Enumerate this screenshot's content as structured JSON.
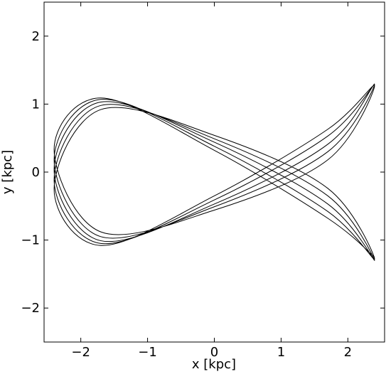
{
  "chart_data": {
    "type": "line",
    "xlabel": "x [kpc]",
    "ylabel": "y [kpc]",
    "xlim": [
      -2.55,
      2.55
    ],
    "ylim": [
      -2.5,
      2.5
    ],
    "xticks": [
      {
        "value": -2,
        "label": "−2"
      },
      {
        "value": -1,
        "label": "−1"
      },
      0,
      1,
      2
    ],
    "yticks": [
      {
        "value": -2,
        "label": "−2"
      },
      {
        "value": -1,
        "label": "−1"
      },
      0,
      1,
      2
    ],
    "grid": false,
    "series": [
      {
        "color": "#000000",
        "x": [
          2.4,
          1.7,
          0,
          -1.7,
          -2.4,
          -1.7,
          0,
          1.7,
          2.4,
          1.7,
          0,
          -1.7,
          -2.4,
          -1.7,
          0,
          1.7,
          2.4,
          1.7,
          0,
          -1.7,
          -2.4,
          -1.7,
          0,
          1.7,
          2.4,
          1.7,
          0,
          -1.7,
          -2.4,
          -1.7,
          0,
          1.7,
          2.4,
          1.7,
          0,
          -1.7,
          -2.4,
          -1.7,
          0,
          1.7,
          2.4
        ],
        "values": [
          1.3,
          0.41,
          -0.47,
          -1.01,
          0.04,
          1.03,
          0.44,
          -0.47,
          -1.3,
          -0.35,
          0.49,
          0.98,
          -0.11,
          -1.05,
          -0.41,
          0.53,
          1.29,
          0.3,
          -0.51,
          -0.95,
          0.18,
          1.07,
          0.38,
          -0.58,
          -1.28,
          -0.24,
          0.54,
          0.92,
          -0.25,
          -1.08,
          -0.35,
          0.63,
          1.27,
          0.18,
          -0.56,
          -0.88,
          0.33,
          1.09,
          0.32,
          -0.68,
          -1.25
        ]
      }
    ]
  }
}
